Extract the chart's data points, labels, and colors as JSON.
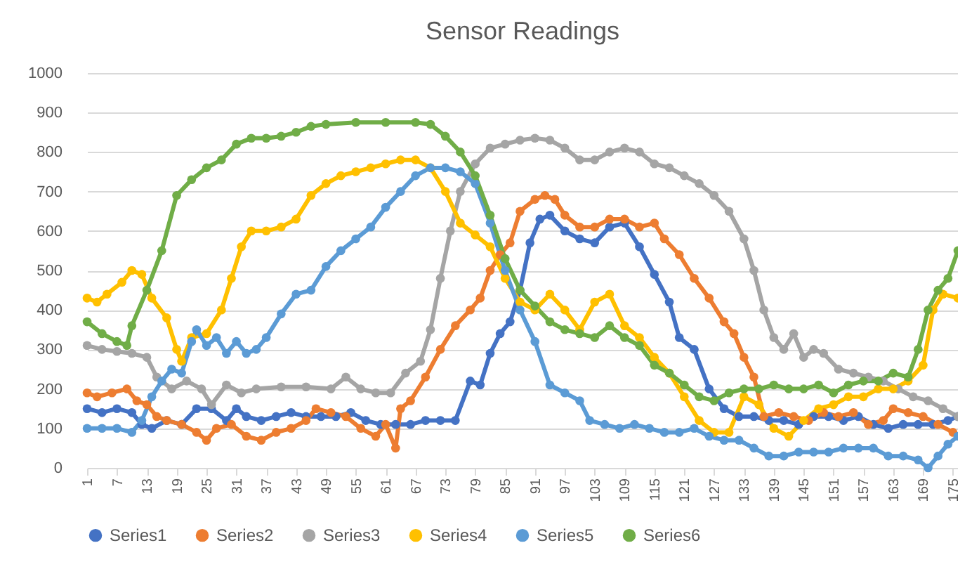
{
  "chart_data": {
    "type": "line",
    "title": "Sensor Readings",
    "xlim": [
      1,
      176
    ],
    "xticks": [
      1,
      7,
      13,
      19,
      25,
      31,
      37,
      43,
      49,
      55,
      61,
      67,
      73,
      79,
      85,
      91,
      97,
      103,
      109,
      115,
      121,
      127,
      133,
      139,
      145,
      151,
      157,
      163,
      169,
      175
    ],
    "ylim": [
      0,
      1000
    ],
    "yticks": [
      0,
      100,
      200,
      300,
      400,
      500,
      600,
      700,
      800,
      900,
      1000
    ],
    "grid": "y",
    "legend": "bottom",
    "marker": "circle",
    "line_style": "solid",
    "series": [
      {
        "name": "Series1",
        "color": "#4472c4",
        "x": [
          1,
          4,
          7,
          10,
          12,
          14,
          17,
          20,
          23,
          26,
          29,
          31,
          33,
          36,
          39,
          42,
          45,
          48,
          51,
          54,
          57,
          60,
          63,
          66,
          69,
          72,
          75,
          78,
          80,
          82,
          84,
          86,
          88,
          90,
          92,
          94,
          97,
          100,
          103,
          106,
          109,
          112,
          115,
          118,
          120,
          123,
          126,
          129,
          132,
          135,
          138,
          141,
          144,
          147,
          150,
          153,
          156,
          159,
          162,
          165,
          168,
          171,
          174,
          176
        ],
        "values": [
          150,
          140,
          150,
          140,
          110,
          100,
          120,
          110,
          150,
          150,
          120,
          150,
          130,
          120,
          130,
          140,
          130,
          130,
          130,
          140,
          120,
          110,
          110,
          110,
          120,
          120,
          120,
          220,
          210,
          290,
          340,
          370,
          450,
          570,
          630,
          640,
          600,
          580,
          570,
          610,
          620,
          560,
          490,
          420,
          330,
          300,
          200,
          150,
          130,
          130,
          120,
          120,
          110,
          130,
          130,
          120,
          130,
          110,
          100,
          110,
          110,
          110,
          120,
          130
        ]
      },
      {
        "name": "Series2",
        "color": "#ed7d31",
        "x": [
          1,
          3,
          6,
          9,
          11,
          13,
          15,
          17,
          20,
          23,
          25,
          27,
          30,
          33,
          36,
          39,
          42,
          45,
          47,
          50,
          53,
          56,
          59,
          61,
          63,
          64,
          66,
          69,
          72,
          75,
          78,
          80,
          82,
          84,
          86,
          88,
          91,
          93,
          95,
          97,
          100,
          103,
          106,
          109,
          112,
          115,
          117,
          120,
          123,
          126,
          129,
          131,
          133,
          135,
          137,
          140,
          143,
          146,
          149,
          152,
          155,
          158,
          161,
          163,
          166,
          169,
          172,
          175
        ],
        "values": [
          190,
          180,
          190,
          200,
          170,
          160,
          130,
          120,
          110,
          90,
          70,
          100,
          110,
          80,
          70,
          90,
          100,
          120,
          150,
          140,
          130,
          100,
          80,
          110,
          50,
          150,
          170,
          230,
          300,
          360,
          400,
          430,
          500,
          540,
          570,
          650,
          680,
          690,
          680,
          640,
          610,
          610,
          630,
          630,
          610,
          620,
          580,
          540,
          480,
          430,
          370,
          340,
          280,
          230,
          130,
          140,
          130,
          120,
          140,
          130,
          140,
          110,
          120,
          150,
          140,
          130,
          110,
          90
        ]
      },
      {
        "name": "Series3",
        "color": "#a5a5a5",
        "x": [
          1,
          4,
          7,
          10,
          13,
          15,
          18,
          21,
          24,
          26,
          29,
          32,
          35,
          40,
          45,
          50,
          53,
          56,
          59,
          62,
          65,
          68,
          70,
          72,
          74,
          76,
          79,
          82,
          85,
          88,
          91,
          94,
          97,
          100,
          103,
          106,
          109,
          112,
          115,
          118,
          121,
          124,
          127,
          130,
          133,
          135,
          137,
          139,
          141,
          143,
          145,
          147,
          149,
          152,
          155,
          158,
          161,
          164,
          167,
          170,
          173,
          176
        ],
        "values": [
          310,
          300,
          295,
          290,
          280,
          230,
          200,
          220,
          200,
          160,
          210,
          190,
          200,
          205,
          205,
          200,
          230,
          200,
          190,
          190,
          240,
          270,
          350,
          480,
          600,
          700,
          770,
          810,
          820,
          830,
          835,
          830,
          810,
          780,
          780,
          800,
          810,
          800,
          770,
          760,
          740,
          720,
          690,
          650,
          580,
          500,
          400,
          330,
          300,
          340,
          280,
          300,
          290,
          250,
          240,
          230,
          220,
          200,
          180,
          170,
          150,
          130
        ]
      },
      {
        "name": "Series4",
        "color": "#ffc000",
        "x": [
          1,
          3,
          5,
          8,
          10,
          12,
          14,
          17,
          19,
          20,
          22,
          25,
          28,
          30,
          32,
          34,
          37,
          40,
          43,
          46,
          49,
          52,
          55,
          58,
          61,
          64,
          67,
          70,
          73,
          76,
          79,
          82,
          85,
          88,
          91,
          94,
          97,
          100,
          103,
          106,
          109,
          112,
          115,
          118,
          121,
          124,
          127,
          130,
          133,
          136,
          139,
          142,
          145,
          148,
          151,
          154,
          157,
          160,
          163,
          166,
          169,
          171,
          173,
          176
        ],
        "values": [
          430,
          420,
          440,
          470,
          500,
          490,
          430,
          380,
          300,
          270,
          330,
          340,
          400,
          480,
          560,
          600,
          600,
          610,
          630,
          690,
          720,
          740,
          750,
          760,
          770,
          780,
          780,
          760,
          700,
          620,
          590,
          560,
          480,
          420,
          400,
          440,
          400,
          350,
          420,
          440,
          360,
          330,
          280,
          240,
          180,
          120,
          90,
          90,
          180,
          160,
          100,
          80,
          120,
          150,
          160,
          180,
          180,
          200,
          200,
          220,
          260,
          400,
          440,
          430
        ]
      },
      {
        "name": "Series5",
        "color": "#5b9bd5",
        "x": [
          1,
          4,
          7,
          10,
          12,
          14,
          16,
          18,
          20,
          22,
          23,
          25,
          27,
          29,
          31,
          33,
          35,
          37,
          40,
          43,
          46,
          49,
          52,
          55,
          58,
          61,
          64,
          67,
          70,
          73,
          76,
          79,
          82,
          85,
          88,
          91,
          94,
          97,
          100,
          102,
          105,
          108,
          111,
          114,
          117,
          120,
          123,
          126,
          129,
          132,
          135,
          138,
          141,
          144,
          147,
          150,
          153,
          156,
          159,
          162,
          165,
          168,
          170,
          172,
          174,
          176
        ],
        "values": [
          100,
          100,
          100,
          90,
          120,
          180,
          220,
          250,
          240,
          320,
          350,
          310,
          330,
          290,
          320,
          290,
          300,
          330,
          390,
          440,
          450,
          510,
          550,
          580,
          610,
          660,
          700,
          740,
          760,
          760,
          750,
          720,
          620,
          500,
          400,
          320,
          210,
          190,
          170,
          120,
          110,
          100,
          110,
          100,
          90,
          90,
          100,
          80,
          70,
          70,
          50,
          30,
          30,
          40,
          40,
          40,
          50,
          50,
          50,
          30,
          30,
          20,
          0,
          30,
          60,
          80
        ]
      },
      {
        "name": "Series6",
        "color": "#70ad47",
        "x": [
          1,
          4,
          7,
          9,
          10,
          13,
          16,
          19,
          22,
          25,
          28,
          31,
          34,
          37,
          40,
          43,
          46,
          49,
          55,
          61,
          67,
          70,
          73,
          76,
          79,
          82,
          85,
          88,
          91,
          94,
          97,
          100,
          103,
          106,
          109,
          112,
          115,
          118,
          121,
          124,
          127,
          130,
          133,
          136,
          139,
          142,
          145,
          148,
          151,
          154,
          157,
          160,
          163,
          166,
          168,
          170,
          172,
          174,
          176
        ],
        "values": [
          370,
          340,
          320,
          310,
          360,
          450,
          550,
          690,
          730,
          760,
          780,
          820,
          835,
          835,
          840,
          850,
          865,
          870,
          875,
          875,
          875,
          870,
          840,
          800,
          740,
          640,
          530,
          450,
          410,
          370,
          350,
          340,
          330,
          360,
          330,
          310,
          260,
          240,
          210,
          180,
          170,
          190,
          200,
          200,
          210,
          200,
          200,
          210,
          190,
          210,
          220,
          220,
          240,
          230,
          300,
          400,
          450,
          480,
          550
        ]
      }
    ]
  }
}
